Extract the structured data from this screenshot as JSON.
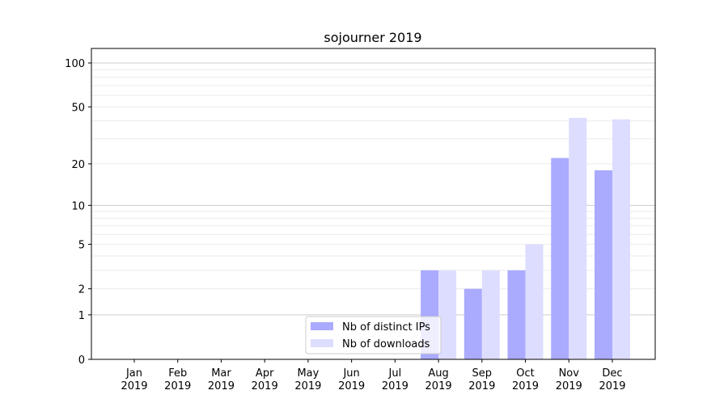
{
  "chart_data": {
    "type": "bar",
    "title": "sojourner 2019",
    "xlabel": "",
    "ylabel": "",
    "yscale": "log(1+y)",
    "ylim": [
      0,
      126
    ],
    "yticks": [
      0,
      1,
      2,
      5,
      10,
      20,
      50,
      100
    ],
    "major_grid": [
      1,
      10,
      100
    ],
    "minor_grid": [
      2,
      3,
      4,
      5,
      6,
      7,
      8,
      9,
      20,
      30,
      40,
      50,
      60,
      70,
      80,
      90
    ],
    "categories": [
      "Jan\n2019",
      "Feb\n2019",
      "Mar\n2019",
      "Apr\n2019",
      "May\n2019",
      "Jun\n2019",
      "Jul\n2019",
      "Aug\n2019",
      "Sep\n2019",
      "Oct\n2019",
      "Nov\n2019",
      "Dec\n2019"
    ],
    "series": [
      {
        "name": "Nb of distinct IPs",
        "color": "#aaaaff",
        "values": [
          0,
          0,
          0,
          0,
          0,
          0,
          0,
          3,
          2,
          3,
          22,
          18
        ]
      },
      {
        "name": "Nb of downloads",
        "color": "#ddddff",
        "values": [
          0,
          0,
          0,
          0,
          0,
          0,
          0,
          3,
          3,
          5,
          42,
          41
        ]
      }
    ],
    "legend": "lower-center"
  }
}
